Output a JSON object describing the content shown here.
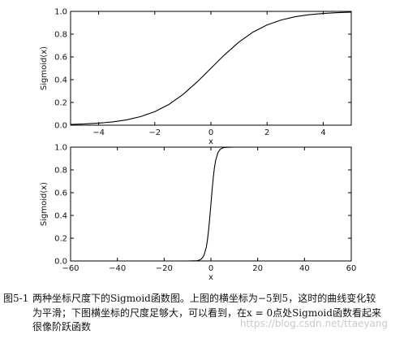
{
  "chart_data": [
    {
      "type": "line",
      "title": "",
      "xlabel": "x",
      "ylabel": "Sigmoid(x)",
      "xlim": [
        -5,
        5
      ],
      "ylim": [
        0.0,
        1.0
      ],
      "xticks": [
        -4,
        -2,
        0,
        2,
        4
      ],
      "xtick_labels": [
        "−4",
        "−2",
        "0",
        "2",
        "4"
      ],
      "yticks": [
        0.0,
        0.2,
        0.4,
        0.6,
        0.8,
        1.0
      ],
      "ytick_labels": [
        "0.0",
        "0.2",
        "0.4",
        "0.6",
        "0.8",
        "1.0"
      ],
      "grid": false,
      "series": [
        {
          "x": [
            -5,
            -4.5,
            -4,
            -3.5,
            -3,
            -2.5,
            -2,
            -1.5,
            -1,
            -0.5,
            0,
            0.5,
            1,
            1.5,
            2,
            2.5,
            3,
            3.5,
            4,
            4.5,
            5
          ],
          "values": [
            0.007,
            0.011,
            0.018,
            0.029,
            0.047,
            0.076,
            0.119,
            0.182,
            0.269,
            0.378,
            0.5,
            0.622,
            0.731,
            0.818,
            0.881,
            0.924,
            0.953,
            0.971,
            0.982,
            0.989,
            0.993
          ]
        }
      ]
    },
    {
      "type": "line",
      "title": "",
      "xlabel": "x",
      "ylabel": "Sigmoid(x)",
      "xlim": [
        -60,
        60
      ],
      "ylim": [
        0.0,
        1.0
      ],
      "xticks": [
        -60,
        -40,
        -20,
        0,
        20,
        40,
        60
      ],
      "xtick_labels": [
        "−60",
        "−40",
        "−20",
        "0",
        "20",
        "40",
        "60"
      ],
      "yticks": [
        0.0,
        0.2,
        0.4,
        0.6,
        0.8,
        1.0
      ],
      "ytick_labels": [
        "0.0",
        "0.2",
        "0.4",
        "0.6",
        "0.8",
        "1.0"
      ],
      "grid": false,
      "series": [
        {
          "x": [
            -60,
            -10,
            -6,
            -5,
            -4,
            -3,
            -2,
            -1.5,
            -1,
            -0.5,
            0,
            0.5,
            1,
            1.5,
            2,
            3,
            4,
            5,
            6,
            10,
            60
          ],
          "values": [
            0.0,
            5e-05,
            0.002,
            0.007,
            0.018,
            0.047,
            0.119,
            0.182,
            0.269,
            0.378,
            0.5,
            0.622,
            0.731,
            0.818,
            0.881,
            0.953,
            0.982,
            0.993,
            0.998,
            1.0,
            1.0
          ]
        }
      ]
    }
  ],
  "caption": {
    "number": "图5-1",
    "lines": [
      "两种坐标尺度下的Sigmoid函数图。上图的横坐标为−5到5，这时的曲线变化较",
      "为平滑；下图横坐标的尺度足够大，可以看到，在x = 0点处Sigmoid函数看起来",
      "很像阶跃函数"
    ]
  },
  "watermark": "https://blog.csdn.net/ttaeyang"
}
